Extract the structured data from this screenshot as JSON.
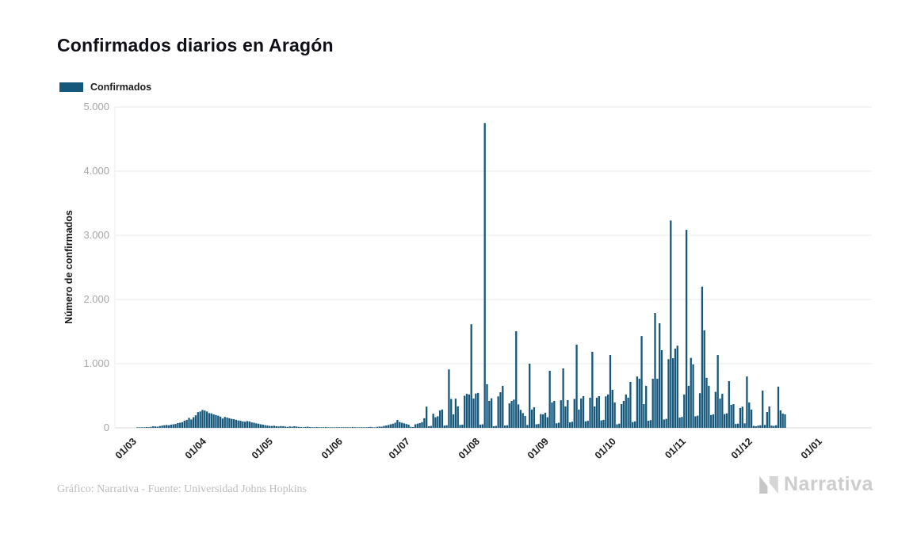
{
  "header": {
    "title": "Confirmados diarios en Aragón"
  },
  "legend": {
    "label": "Confirmados",
    "swatch_color": "#15587C"
  },
  "footer": {
    "credit": "Gráfico: Narrativa - Fuente: Universidad Johns Hopkins",
    "brand": "Narrativa"
  },
  "chart_data": {
    "type": "bar",
    "title": "Confirmados diarios en Aragón",
    "series_name": "Confirmados",
    "xlabel": "",
    "ylabel": "Número de confirmados",
    "ylim": [
      0,
      5000
    ],
    "grid": "horizontal",
    "legend_position": "top-left",
    "bar_color": "#15587C",
    "y_tick_values": [
      0,
      1000,
      2000,
      3000,
      4000,
      5000
    ],
    "y_tick_labels": [
      "0",
      "1.000",
      "2.000",
      "3.000",
      "4.000",
      "5.000"
    ],
    "x_tick_labels": [
      "01/03",
      "01/04",
      "01/05",
      "01/06",
      "01/07",
      "01/08",
      "01/09",
      "01/10",
      "01/11",
      "01/12",
      "01/01"
    ],
    "x_tick_day_indices": [
      0,
      31,
      61,
      92,
      122,
      153,
      184,
      214,
      245,
      275,
      306
    ],
    "start_date": "01/03",
    "daily_values": [
      0,
      0,
      0,
      2,
      3,
      5,
      8,
      12,
      10,
      15,
      25,
      22,
      18,
      28,
      35,
      40,
      45,
      40,
      50,
      55,
      60,
      75,
      80,
      90,
      110,
      125,
      155,
      130,
      165,
      195,
      245,
      255,
      280,
      270,
      255,
      230,
      225,
      210,
      200,
      190,
      175,
      145,
      170,
      160,
      150,
      140,
      135,
      125,
      115,
      110,
      100,
      95,
      105,
      100,
      85,
      80,
      70,
      65,
      55,
      50,
      42,
      35,
      30,
      28,
      33,
      25,
      22,
      28,
      25,
      20,
      15,
      22,
      18,
      25,
      20,
      15,
      12,
      10,
      15,
      18,
      12,
      10,
      8,
      12,
      10,
      8,
      10,
      12,
      8,
      6,
      8,
      5,
      8,
      10,
      6,
      5,
      10,
      8,
      5,
      12,
      10,
      8,
      6,
      10,
      8,
      6,
      12,
      15,
      10,
      8,
      15,
      20,
      18,
      30,
      35,
      45,
      55,
      65,
      80,
      123,
      90,
      80,
      70,
      60,
      50,
      15,
      12,
      55,
      65,
      75,
      90,
      150,
      330,
      25,
      30,
      220,
      165,
      180,
      270,
      285,
      35,
      40,
      910,
      450,
      210,
      455,
      335,
      45,
      50,
      500,
      530,
      520,
      1615,
      457,
      535,
      545,
      50,
      55,
      4750,
      680,
      420,
      460,
      25,
      30,
      490,
      555,
      655,
      35,
      40,
      380,
      420,
      440,
      1505,
      365,
      280,
      230,
      185,
      45,
      1000,
      285,
      320,
      55,
      60,
      215,
      210,
      235,
      165,
      890,
      395,
      420,
      70,
      80,
      430,
      926,
      333,
      432,
      85,
      95,
      450,
      1296,
      284,
      457,
      494,
      100,
      110,
      470,
      1185,
      333,
      470,
      494,
      115,
      125,
      490,
      520,
      1136,
      593,
      395,
      55,
      65,
      370,
      420,
      520,
      470,
      716,
      90,
      100,
      800,
      765,
      1430,
      370,
      654,
      110,
      120,
      765,
      1790,
      765,
      1630,
      1210,
      130,
      140,
      1070,
      3230,
      1085,
      1235,
      1280,
      160,
      170,
      520,
      3085,
      655,
      1090,
      990,
      180,
      190,
      540,
      2200,
      1520,
      780,
      655,
      200,
      210,
      560,
      1135,
      455,
      530,
      215,
      225,
      728,
      358,
      370,
      60,
      65,
      310,
      330,
      70,
      800,
      395,
      284,
      30,
      25,
      35,
      40,
      580,
      45,
      247,
      333,
      35,
      30,
      40,
      642,
      272,
      222,
      210
    ]
  }
}
